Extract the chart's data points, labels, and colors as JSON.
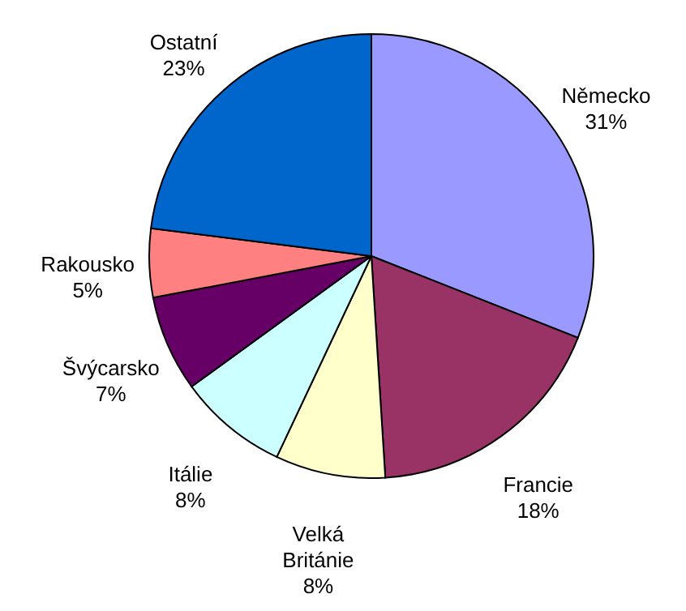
{
  "chart_data": {
    "type": "pie",
    "categories": [
      "Německo",
      "Francie",
      "Velká Británie",
      "Itálie",
      "Švýcarsko",
      "Rakousko",
      "Ostatní"
    ],
    "values": [
      31,
      18,
      8,
      8,
      7,
      5,
      23
    ],
    "colors": [
      "#9999ff",
      "#993366",
      "#ffffcc",
      "#ccffff",
      "#660066",
      "#ff8080",
      "#0066cc"
    ],
    "value_labels": [
      "31%",
      "18%",
      "8%",
      "8%",
      "7%",
      "5%",
      "23%"
    ]
  }
}
